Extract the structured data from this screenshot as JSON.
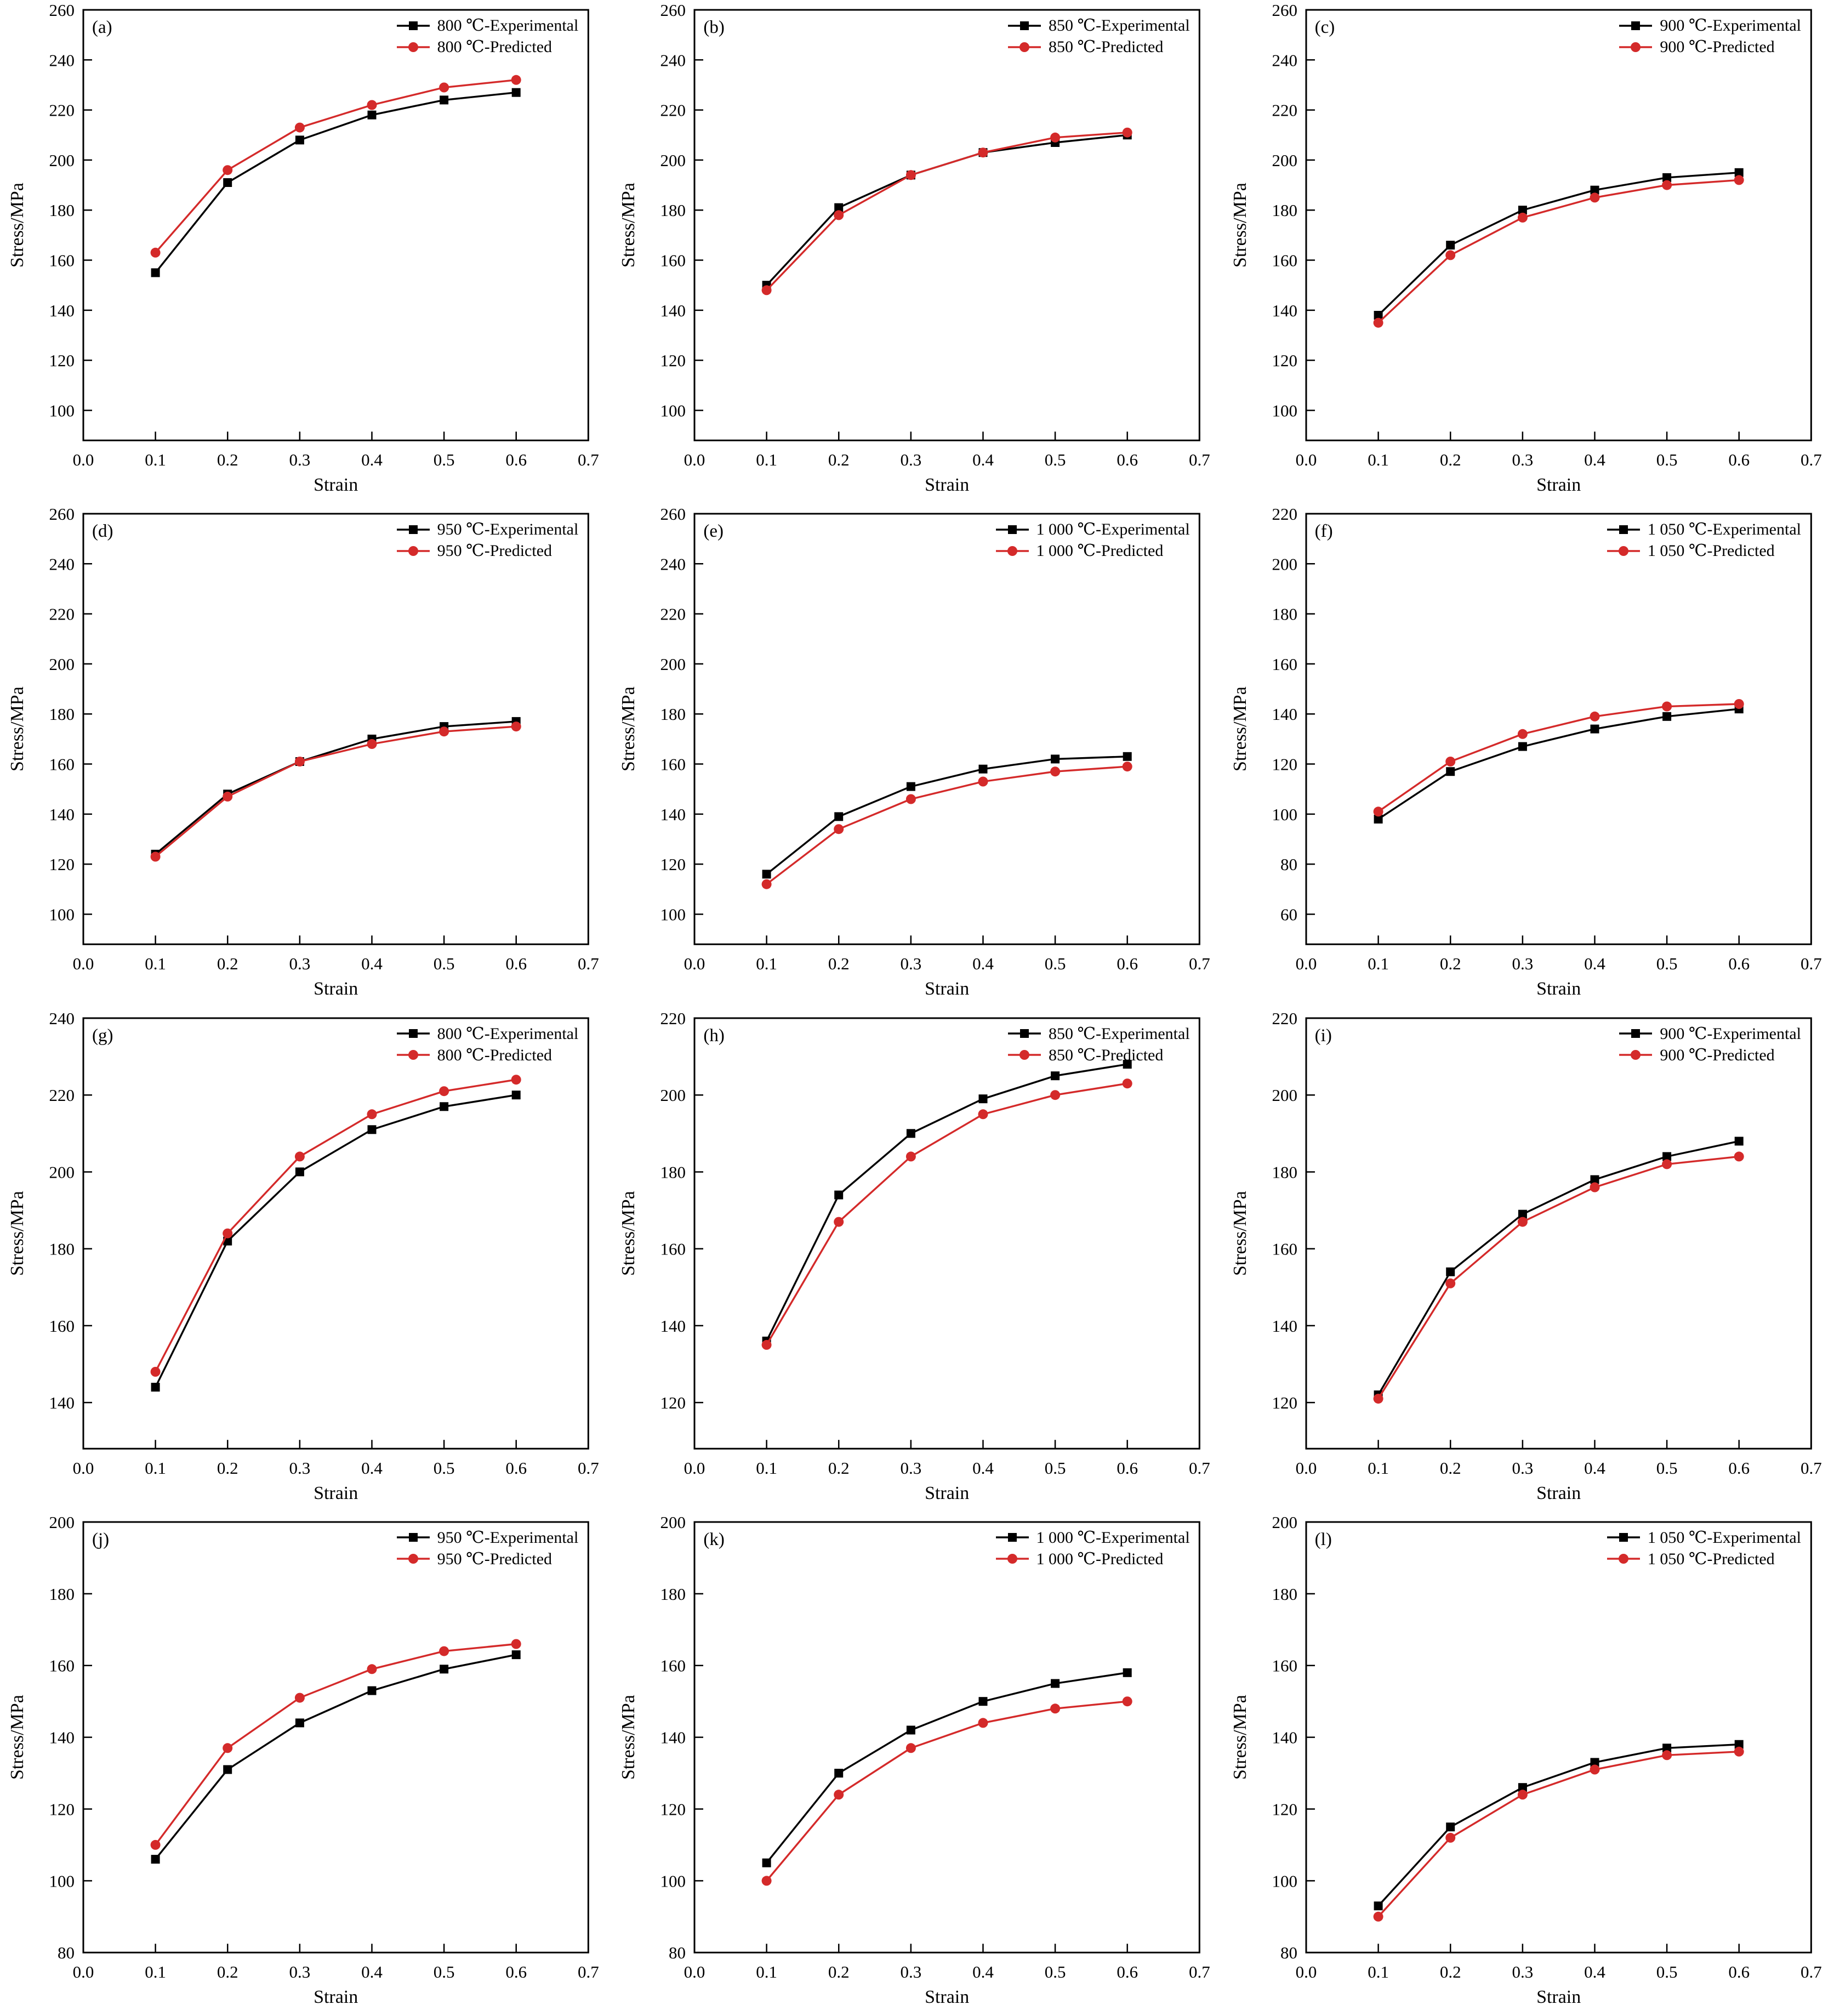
{
  "page": {
    "background": "#ffffff"
  },
  "colors": {
    "experimental": "#000000",
    "predicted": "#d42a2a"
  },
  "axes": {
    "xlabel": "Strain",
    "ylabel": "Stress/MPa",
    "xlim": [
      0.0,
      0.7
    ],
    "xticks": [
      "0.0",
      "0.1",
      "0.2",
      "0.3",
      "0.4",
      "0.5",
      "0.6",
      "0.7"
    ],
    "x": [
      0.1,
      0.2,
      0.3,
      0.4,
      0.5,
      0.6
    ]
  },
  "chart_data": [
    {
      "id": "a",
      "panel_label": "(a)",
      "type": "line",
      "ylim": [
        88,
        260
      ],
      "yticks": [
        100,
        120,
        140,
        160,
        180,
        200,
        220,
        240,
        260
      ],
      "series": [
        {
          "name": "800 ℃-Experimental",
          "marker": "square",
          "color_key": "experimental",
          "values": [
            155,
            191,
            208,
            218,
            224,
            227
          ]
        },
        {
          "name": "800 ℃-Predicted",
          "marker": "circle",
          "color_key": "predicted",
          "values": [
            163,
            196,
            213,
            222,
            229,
            232
          ]
        }
      ]
    },
    {
      "id": "b",
      "panel_label": "(b)",
      "type": "line",
      "ylim": [
        88,
        260
      ],
      "yticks": [
        100,
        120,
        140,
        160,
        180,
        200,
        220,
        240,
        260
      ],
      "series": [
        {
          "name": "850 ℃-Experimental",
          "marker": "square",
          "color_key": "experimental",
          "values": [
            150,
            181,
            194,
            203,
            207,
            210
          ]
        },
        {
          "name": "850 ℃-Predicted",
          "marker": "circle",
          "color_key": "predicted",
          "values": [
            148,
            178,
            194,
            203,
            209,
            211
          ]
        }
      ]
    },
    {
      "id": "c",
      "panel_label": "(c)",
      "type": "line",
      "ylim": [
        88,
        260
      ],
      "yticks": [
        100,
        120,
        140,
        160,
        180,
        200,
        220,
        240,
        260
      ],
      "series": [
        {
          "name": "900 ℃-Experimental",
          "marker": "square",
          "color_key": "experimental",
          "values": [
            138,
            166,
            180,
            188,
            193,
            195
          ]
        },
        {
          "name": "900 ℃-Predicted",
          "marker": "circle",
          "color_key": "predicted",
          "values": [
            135,
            162,
            177,
            185,
            190,
            192
          ]
        }
      ]
    },
    {
      "id": "d",
      "panel_label": "(d)",
      "type": "line",
      "ylim": [
        88,
        260
      ],
      "yticks": [
        100,
        120,
        140,
        160,
        180,
        200,
        220,
        240,
        260
      ],
      "series": [
        {
          "name": "950 ℃-Experimental",
          "marker": "square",
          "color_key": "experimental",
          "values": [
            124,
            148,
            161,
            170,
            175,
            177
          ]
        },
        {
          "name": "950 ℃-Predicted",
          "marker": "circle",
          "color_key": "predicted",
          "values": [
            123,
            147,
            161,
            168,
            173,
            175
          ]
        }
      ]
    },
    {
      "id": "e",
      "panel_label": "(e)",
      "type": "line",
      "ylim": [
        88,
        260
      ],
      "yticks": [
        100,
        120,
        140,
        160,
        180,
        200,
        220,
        240,
        260
      ],
      "series": [
        {
          "name": "1 000 ℃-Experimental",
          "marker": "square",
          "color_key": "experimental",
          "values": [
            116,
            139,
            151,
            158,
            162,
            163
          ]
        },
        {
          "name": "1 000 ℃-Predicted",
          "marker": "circle",
          "color_key": "predicted",
          "values": [
            112,
            134,
            146,
            153,
            157,
            159
          ]
        }
      ]
    },
    {
      "id": "f",
      "panel_label": "(f)",
      "type": "line",
      "ylim": [
        48,
        220
      ],
      "yticks": [
        60,
        80,
        100,
        120,
        140,
        160,
        180,
        200,
        220
      ],
      "series": [
        {
          "name": "1 050 ℃-Experimental",
          "marker": "square",
          "color_key": "experimental",
          "values": [
            98,
            117,
            127,
            134,
            139,
            142
          ]
        },
        {
          "name": "1 050 ℃-Predicted",
          "marker": "circle",
          "color_key": "predicted",
          "values": [
            101,
            121,
            132,
            139,
            143,
            144
          ]
        }
      ]
    },
    {
      "id": "g",
      "panel_label": "(g)",
      "type": "line",
      "ylim": [
        128,
        240
      ],
      "yticks": [
        140,
        160,
        180,
        200,
        220,
        240
      ],
      "series": [
        {
          "name": "800 ℃-Experimental",
          "marker": "square",
          "color_key": "experimental",
          "values": [
            144,
            182,
            200,
            211,
            217,
            220
          ]
        },
        {
          "name": "800 ℃-Predicted",
          "marker": "circle",
          "color_key": "predicted",
          "values": [
            148,
            184,
            204,
            215,
            221,
            224
          ]
        }
      ]
    },
    {
      "id": "h",
      "panel_label": "(h)",
      "type": "line",
      "ylim": [
        108,
        220
      ],
      "yticks": [
        120,
        140,
        160,
        180,
        200,
        220
      ],
      "series": [
        {
          "name": "850 ℃-Experimental",
          "marker": "square",
          "color_key": "experimental",
          "values": [
            136,
            174,
            190,
            199,
            205,
            208
          ]
        },
        {
          "name": "850 ℃-Predicted",
          "marker": "circle",
          "color_key": "predicted",
          "values": [
            135,
            167,
            184,
            195,
            200,
            203
          ]
        }
      ]
    },
    {
      "id": "i",
      "panel_label": "(i)",
      "type": "line",
      "ylim": [
        108,
        220
      ],
      "yticks": [
        120,
        140,
        160,
        180,
        200,
        220
      ],
      "series": [
        {
          "name": "900 ℃-Experimental",
          "marker": "square",
          "color_key": "experimental",
          "values": [
            122,
            154,
            169,
            178,
            184,
            188
          ]
        },
        {
          "name": "900 ℃-Predicted",
          "marker": "circle",
          "color_key": "predicted",
          "values": [
            121,
            151,
            167,
            176,
            182,
            184
          ]
        }
      ]
    },
    {
      "id": "j",
      "panel_label": "(j)",
      "type": "line",
      "ylim": [
        80,
        200
      ],
      "yticks": [
        80,
        100,
        120,
        140,
        160,
        180,
        200
      ],
      "series": [
        {
          "name": "950 ℃-Experimental",
          "marker": "square",
          "color_key": "experimental",
          "values": [
            106,
            131,
            144,
            153,
            159,
            163
          ]
        },
        {
          "name": "950 ℃-Predicted",
          "marker": "circle",
          "color_key": "predicted",
          "values": [
            110,
            137,
            151,
            159,
            164,
            166
          ]
        }
      ]
    },
    {
      "id": "k",
      "panel_label": "(k)",
      "type": "line",
      "ylim": [
        80,
        200
      ],
      "yticks": [
        80,
        100,
        120,
        140,
        160,
        180,
        200
      ],
      "series": [
        {
          "name": "1 000 ℃-Experimental",
          "marker": "square",
          "color_key": "experimental",
          "values": [
            105,
            130,
            142,
            150,
            155,
            158
          ]
        },
        {
          "name": "1 000 ℃-Predicted",
          "marker": "circle",
          "color_key": "predicted",
          "values": [
            100,
            124,
            137,
            144,
            148,
            150
          ]
        }
      ]
    },
    {
      "id": "l",
      "panel_label": "(l)",
      "type": "line",
      "ylim": [
        80,
        200
      ],
      "yticks": [
        80,
        100,
        120,
        140,
        160,
        180,
        200
      ],
      "series": [
        {
          "name": "1 050 ℃-Experimental",
          "marker": "square",
          "color_key": "experimental",
          "values": [
            93,
            115,
            126,
            133,
            137,
            138
          ]
        },
        {
          "name": "1 050 ℃-Predicted",
          "marker": "circle",
          "color_key": "predicted",
          "values": [
            90,
            112,
            124,
            131,
            135,
            136
          ]
        }
      ]
    }
  ]
}
